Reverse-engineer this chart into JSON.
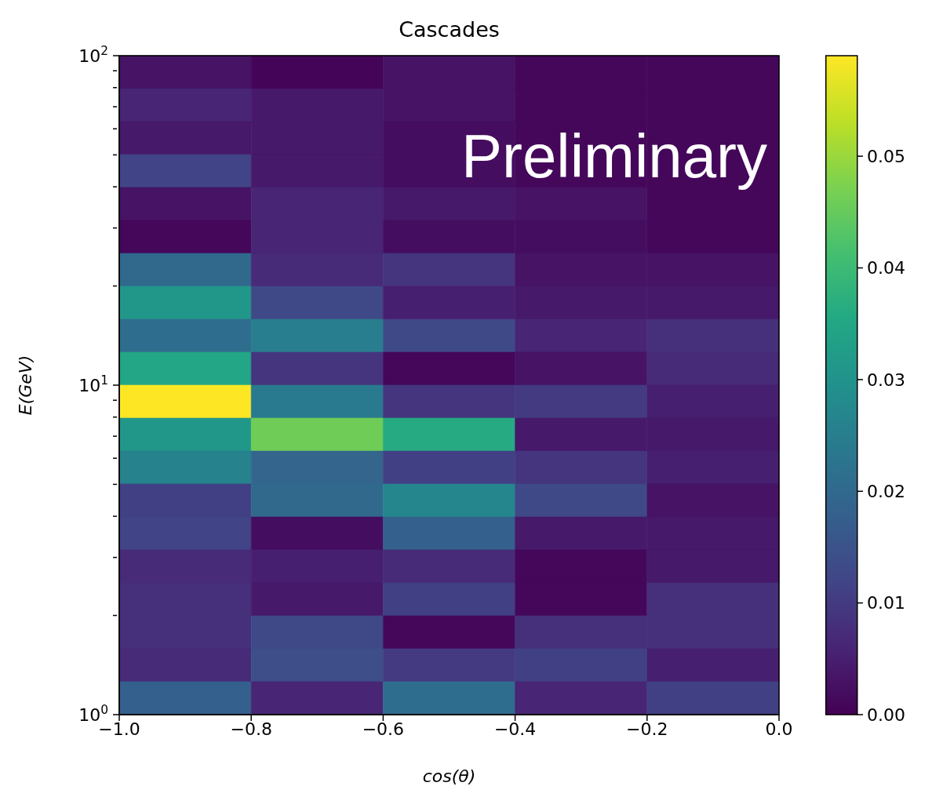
{
  "chart_data": {
    "type": "heatmap",
    "title": "Cascades",
    "xlabel": "cos(θ)",
    "ylabel": "E(GeV)",
    "annotations": [
      "Preliminary"
    ],
    "cells": [
      [
        0.003,
        0.0005,
        0.003,
        0.001,
        0.001
      ],
      [
        0.006,
        0.004,
        0.003,
        0.001,
        0.001
      ],
      [
        0.004,
        0.004,
        0.002,
        0.001,
        0.001
      ],
      [
        0.012,
        0.004,
        0.002,
        0.001,
        0.001
      ],
      [
        0.003,
        0.006,
        0.004,
        0.003,
        0.001
      ],
      [
        0.001,
        0.006,
        0.002,
        0.002,
        0.001
      ],
      [
        0.02,
        0.007,
        0.009,
        0.003,
        0.003
      ],
      [
        0.031,
        0.013,
        0.005,
        0.004,
        0.004
      ],
      [
        0.021,
        0.025,
        0.013,
        0.006,
        0.008
      ],
      [
        0.035,
        0.009,
        0.001,
        0.003,
        0.007
      ],
      [
        0.059,
        0.024,
        0.009,
        0.01,
        0.005
      ],
      [
        0.031,
        0.046,
        0.036,
        0.004,
        0.004
      ],
      [
        0.026,
        0.019,
        0.011,
        0.009,
        0.005
      ],
      [
        0.011,
        0.02,
        0.027,
        0.013,
        0.003
      ],
      [
        0.012,
        0.002,
        0.018,
        0.004,
        0.004
      ],
      [
        0.007,
        0.005,
        0.007,
        0.001,
        0.004
      ],
      [
        0.008,
        0.004,
        0.011,
        0.001,
        0.008
      ],
      [
        0.008,
        0.013,
        0.001,
        0.008,
        0.008
      ],
      [
        0.007,
        0.014,
        0.01,
        0.011,
        0.005
      ],
      [
        0.018,
        0.006,
        0.021,
        0.006,
        0.011
      ]
    ],
    "xlim": [
      -1,
      0
    ],
    "xticks": [
      {
        "value": -1,
        "label": "−1.0"
      },
      {
        "value": -0.8,
        "label": "−0.8"
      },
      {
        "value": -0.6,
        "label": "−0.6"
      },
      {
        "value": -0.4,
        "label": "−0.4"
      },
      {
        "value": -0.2,
        "label": "−0.2"
      },
      {
        "value": 0,
        "label": "0.0"
      }
    ],
    "ylim": [
      1,
      100
    ],
    "yticks": [
      {
        "value": 1,
        "label": "10$^{0}$"
      },
      {
        "value": 2,
        "label": null
      },
      {
        "value": 3,
        "label": null
      },
      {
        "value": 4,
        "label": null
      },
      {
        "value": 5,
        "label": null
      },
      {
        "value": 6,
        "label": null
      },
      {
        "value": 7,
        "label": null
      },
      {
        "value": 8,
        "label": null
      },
      {
        "value": 9,
        "label": null
      },
      {
        "value": 10,
        "label": "10$^{1}$"
      },
      {
        "value": 20,
        "label": null
      },
      {
        "value": 30,
        "label": null
      },
      {
        "value": 40,
        "label": null
      },
      {
        "value": 50,
        "label": null
      },
      {
        "value": 60,
        "label": null
      },
      {
        "value": 70,
        "label": null
      },
      {
        "value": 80,
        "label": null
      },
      {
        "value": 90,
        "label": null
      },
      {
        "value": 100,
        "label": "10$^{2}$"
      }
    ],
    "log": "y",
    "clim": [
      0,
      0.059
    ],
    "cticks": [
      {
        "value": 0,
        "label": "0.00"
      },
      {
        "value": 0.01,
        "label": "0.01"
      },
      {
        "value": 0.02,
        "label": "0.02"
      },
      {
        "value": 0.03,
        "label": "0.03"
      },
      {
        "value": 0.04,
        "label": "0.04"
      },
      {
        "value": 0.05,
        "label": "0.05"
      }
    ]
  }
}
